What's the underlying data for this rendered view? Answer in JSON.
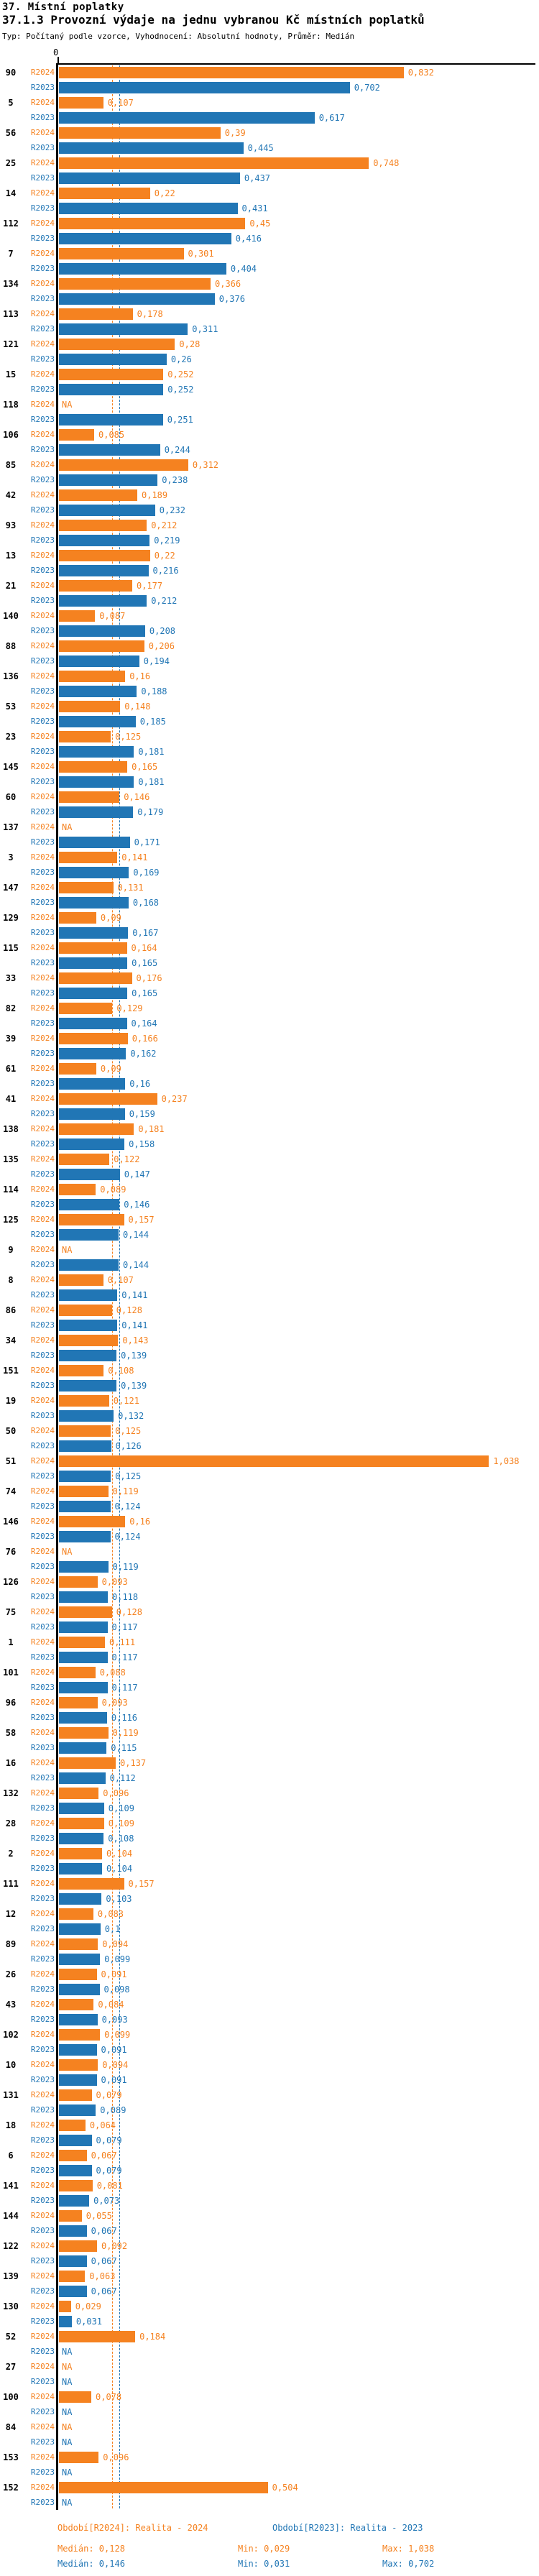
{
  "title": "37. Místní poplatky",
  "subtitle": "37.1.3 Provozní výdaje na jednu vybranou Kč místních poplatků",
  "meta_line": "Typ: Počítaný podle vzorce, Vyhodnocení: Absolutní hodnoty, Průměr: Medián",
  "chart_data": {
    "type": "bar",
    "orientation": "horizontal",
    "axis_zero_label": "0",
    "xlim": [
      0,
      1.15
    ],
    "grid": false,
    "na_label": "NA",
    "decimal_separator": ",",
    "series_names": [
      "R2024",
      "R2023"
    ],
    "series_colors": {
      "R2024": "#F58220",
      "R2023": "#2176B5"
    },
    "median_lines": {
      "R2024": 0.128,
      "R2023": 0.146
    },
    "categories": [
      {
        "label": "90",
        "R2024": 0.832,
        "R2023": 0.702
      },
      {
        "label": "5",
        "R2024": 0.107,
        "R2023": 0.617
      },
      {
        "label": "56",
        "R2024": 0.39,
        "R2023": 0.445
      },
      {
        "label": "25",
        "R2024": 0.748,
        "R2023": 0.437
      },
      {
        "label": "14",
        "R2024": 0.22,
        "R2023": 0.431
      },
      {
        "label": "112",
        "R2024": 0.45,
        "R2023": 0.416
      },
      {
        "label": "7",
        "R2024": 0.301,
        "R2023": 0.404
      },
      {
        "label": "134",
        "R2024": 0.366,
        "R2023": 0.376
      },
      {
        "label": "113",
        "R2024": 0.178,
        "R2023": 0.311
      },
      {
        "label": "121",
        "R2024": 0.28,
        "R2023": 0.26
      },
      {
        "label": "15",
        "R2024": 0.252,
        "R2023": 0.252
      },
      {
        "label": "118",
        "R2024": null,
        "R2023": 0.251
      },
      {
        "label": "106",
        "R2024": 0.085,
        "R2023": 0.244
      },
      {
        "label": "85",
        "R2024": 0.312,
        "R2023": 0.238
      },
      {
        "label": "42",
        "R2024": 0.189,
        "R2023": 0.232
      },
      {
        "label": "93",
        "R2024": 0.212,
        "R2023": 0.219
      },
      {
        "label": "13",
        "R2024": 0.22,
        "R2023": 0.216
      },
      {
        "label": "21",
        "R2024": 0.177,
        "R2023": 0.212
      },
      {
        "label": "140",
        "R2024": 0.087,
        "R2023": 0.208
      },
      {
        "label": "88",
        "R2024": 0.206,
        "R2023": 0.194
      },
      {
        "label": "136",
        "R2024": 0.16,
        "R2023": 0.188
      },
      {
        "label": "53",
        "R2024": 0.148,
        "R2023": 0.185
      },
      {
        "label": "23",
        "R2024": 0.125,
        "R2023": 0.181
      },
      {
        "label": "145",
        "R2024": 0.165,
        "R2023": 0.181
      },
      {
        "label": "60",
        "R2024": 0.146,
        "R2023": 0.179
      },
      {
        "label": "137",
        "R2024": null,
        "R2023": 0.171
      },
      {
        "label": "3",
        "R2024": 0.141,
        "R2023": 0.169
      },
      {
        "label": "147",
        "R2024": 0.131,
        "R2023": 0.168
      },
      {
        "label": "129",
        "R2024": 0.09,
        "R2023": 0.167
      },
      {
        "label": "115",
        "R2024": 0.164,
        "R2023": 0.165
      },
      {
        "label": "33",
        "R2024": 0.176,
        "R2023": 0.165
      },
      {
        "label": "82",
        "R2024": 0.129,
        "R2023": 0.164
      },
      {
        "label": "39",
        "R2024": 0.166,
        "R2023": 0.162
      },
      {
        "label": "61",
        "R2024": 0.09,
        "R2023": 0.16
      },
      {
        "label": "41",
        "R2024": 0.237,
        "R2023": 0.159
      },
      {
        "label": "138",
        "R2024": 0.181,
        "R2023": 0.158
      },
      {
        "label": "135",
        "R2024": 0.122,
        "R2023": 0.147
      },
      {
        "label": "114",
        "R2024": 0.089,
        "R2023": 0.146
      },
      {
        "label": "125",
        "R2024": 0.157,
        "R2023": 0.144
      },
      {
        "label": "9",
        "R2024": null,
        "R2023": 0.144
      },
      {
        "label": "8",
        "R2024": 0.107,
        "R2023": 0.141
      },
      {
        "label": "86",
        "R2024": 0.128,
        "R2023": 0.141
      },
      {
        "label": "34",
        "R2024": 0.143,
        "R2023": 0.139
      },
      {
        "label": "151",
        "R2024": 0.108,
        "R2023": 0.139
      },
      {
        "label": "19",
        "R2024": 0.121,
        "R2023": 0.132
      },
      {
        "label": "50",
        "R2024": 0.125,
        "R2023": 0.126
      },
      {
        "label": "51",
        "R2024": 1.038,
        "R2023": 0.125
      },
      {
        "label": "74",
        "R2024": 0.119,
        "R2023": 0.124
      },
      {
        "label": "146",
        "R2024": 0.16,
        "R2023": 0.124
      },
      {
        "label": "76",
        "R2024": null,
        "R2023": 0.119
      },
      {
        "label": "126",
        "R2024": 0.093,
        "R2023": 0.118
      },
      {
        "label": "75",
        "R2024": 0.128,
        "R2023": 0.117
      },
      {
        "label": "1",
        "R2024": 0.111,
        "R2023": 0.117
      },
      {
        "label": "101",
        "R2024": 0.088,
        "R2023": 0.117
      },
      {
        "label": "96",
        "R2024": 0.093,
        "R2023": 0.116
      },
      {
        "label": "58",
        "R2024": 0.119,
        "R2023": 0.115
      },
      {
        "label": "16",
        "R2024": 0.137,
        "R2023": 0.112
      },
      {
        "label": "132",
        "R2024": 0.096,
        "R2023": 0.109
      },
      {
        "label": "28",
        "R2024": 0.109,
        "R2023": 0.108
      },
      {
        "label": "2",
        "R2024": 0.104,
        "R2023": 0.104
      },
      {
        "label": "111",
        "R2024": 0.157,
        "R2023": 0.103
      },
      {
        "label": "12",
        "R2024": 0.083,
        "R2023": 0.1
      },
      {
        "label": "89",
        "R2024": 0.094,
        "R2023": 0.099
      },
      {
        "label": "26",
        "R2024": 0.091,
        "R2023": 0.098
      },
      {
        "label": "43",
        "R2024": 0.084,
        "R2023": 0.093
      },
      {
        "label": "102",
        "R2024": 0.099,
        "R2023": 0.091
      },
      {
        "label": "10",
        "R2024": 0.094,
        "R2023": 0.091
      },
      {
        "label": "131",
        "R2024": 0.079,
        "R2023": 0.089
      },
      {
        "label": "18",
        "R2024": 0.064,
        "R2023": 0.079
      },
      {
        "label": "6",
        "R2024": 0.067,
        "R2023": 0.079
      },
      {
        "label": "141",
        "R2024": 0.081,
        "R2023": 0.073
      },
      {
        "label": "144",
        "R2024": 0.055,
        "R2023": 0.067
      },
      {
        "label": "122",
        "R2024": 0.092,
        "R2023": 0.067
      },
      {
        "label": "139",
        "R2024": 0.063,
        "R2023": 0.067
      },
      {
        "label": "130",
        "R2024": 0.029,
        "R2023": 0.031
      },
      {
        "label": "52",
        "R2024": 0.184,
        "R2023": null
      },
      {
        "label": "27",
        "R2024": null,
        "R2023": null
      },
      {
        "label": "100",
        "R2024": 0.078,
        "R2023": null
      },
      {
        "label": "84",
        "R2024": null,
        "R2023": null
      },
      {
        "label": "153",
        "R2024": 0.096,
        "R2023": null
      },
      {
        "label": "152",
        "R2024": 0.504,
        "R2023": null
      }
    ]
  },
  "legend": {
    "r2024": {
      "period": "Období[R2024]: Realita - 2024",
      "median": "Medián: 0,128",
      "min": "Min: 0,029",
      "max": "Max: 1,038"
    },
    "r2023": {
      "period": "Období[R2023]: Realita - 2023",
      "median": "Medián: 0,146",
      "min": "Min: 0,031",
      "max": "Max: 0,702"
    }
  }
}
